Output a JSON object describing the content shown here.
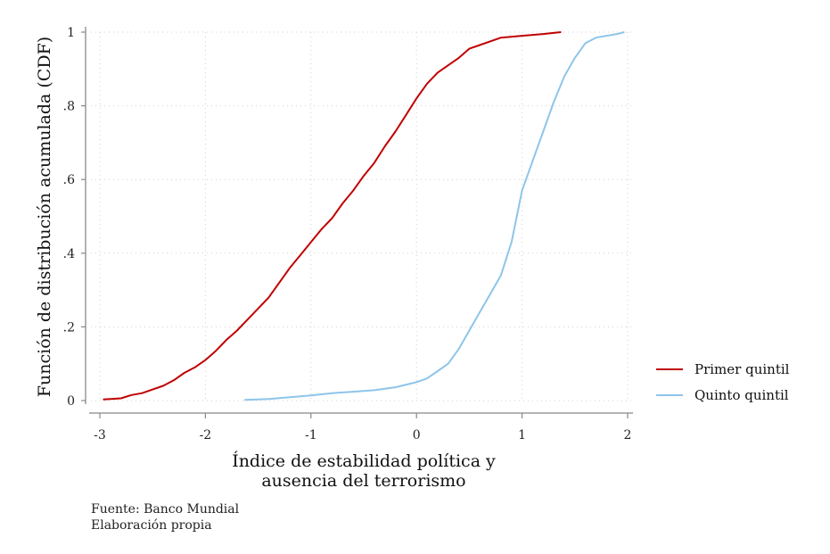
{
  "chart_data": {
    "type": "line",
    "xlabel": [
      "Índice de estabilidad política y",
      "ausencia del terrorismo"
    ],
    "ylabel": "Función de distribución acumulada (CDF)",
    "xlim": [
      -3,
      2
    ],
    "ylim": [
      0,
      1
    ],
    "xticks": [
      -3,
      -2,
      -1,
      0,
      1,
      2
    ],
    "xtick_labels": [
      "-3",
      "-2",
      "-1",
      "0",
      "1",
      "2"
    ],
    "yticks": [
      0,
      0.2,
      0.4,
      0.6,
      0.8,
      1
    ],
    "ytick_labels": [
      "0",
      ".2",
      ".4",
      ".6",
      ".8",
      "1"
    ],
    "grid": "dotted",
    "legend_position": "right",
    "series": [
      {
        "name": "Primer quintil",
        "color": "#c00000",
        "x": [
          -2.97,
          -2.8,
          -2.7,
          -2.6,
          -2.5,
          -2.4,
          -2.3,
          -2.2,
          -2.1,
          -2.0,
          -1.9,
          -1.8,
          -1.7,
          -1.6,
          -1.5,
          -1.4,
          -1.3,
          -1.2,
          -1.1,
          -1.0,
          -0.9,
          -0.8,
          -0.7,
          -0.6,
          -0.5,
          -0.4,
          -0.3,
          -0.2,
          -0.1,
          0.0,
          0.1,
          0.2,
          0.3,
          0.4,
          0.5,
          0.6,
          0.7,
          0.8,
          1.0,
          1.2,
          1.37
        ],
        "y": [
          0.003,
          0.006,
          0.015,
          0.02,
          0.03,
          0.04,
          0.055,
          0.075,
          0.09,
          0.11,
          0.135,
          0.165,
          0.19,
          0.22,
          0.25,
          0.28,
          0.32,
          0.36,
          0.395,
          0.43,
          0.465,
          0.495,
          0.535,
          0.57,
          0.61,
          0.645,
          0.69,
          0.73,
          0.775,
          0.82,
          0.86,
          0.89,
          0.91,
          0.93,
          0.955,
          0.965,
          0.975,
          0.985,
          0.99,
          0.995,
          1.0
        ]
      },
      {
        "name": "Quinto quintil",
        "color": "#8ec5ea",
        "x": [
          -1.63,
          -1.4,
          -1.2,
          -1.0,
          -0.8,
          -0.6,
          -0.4,
          -0.2,
          0.0,
          0.1,
          0.2,
          0.3,
          0.4,
          0.5,
          0.6,
          0.7,
          0.8,
          0.9,
          0.95,
          1.0,
          1.1,
          1.2,
          1.3,
          1.4,
          1.5,
          1.6,
          1.7,
          1.8,
          1.9,
          1.97
        ],
        "y": [
          0.002,
          0.004,
          0.009,
          0.014,
          0.02,
          0.024,
          0.028,
          0.036,
          0.05,
          0.06,
          0.08,
          0.1,
          0.14,
          0.19,
          0.24,
          0.29,
          0.34,
          0.43,
          0.5,
          0.57,
          0.65,
          0.73,
          0.81,
          0.88,
          0.93,
          0.97,
          0.985,
          0.99,
          0.995,
          1.0
        ]
      }
    ]
  },
  "notes": {
    "source": "Fuente: Banco Mundial",
    "credit": "Elaboración propia"
  }
}
